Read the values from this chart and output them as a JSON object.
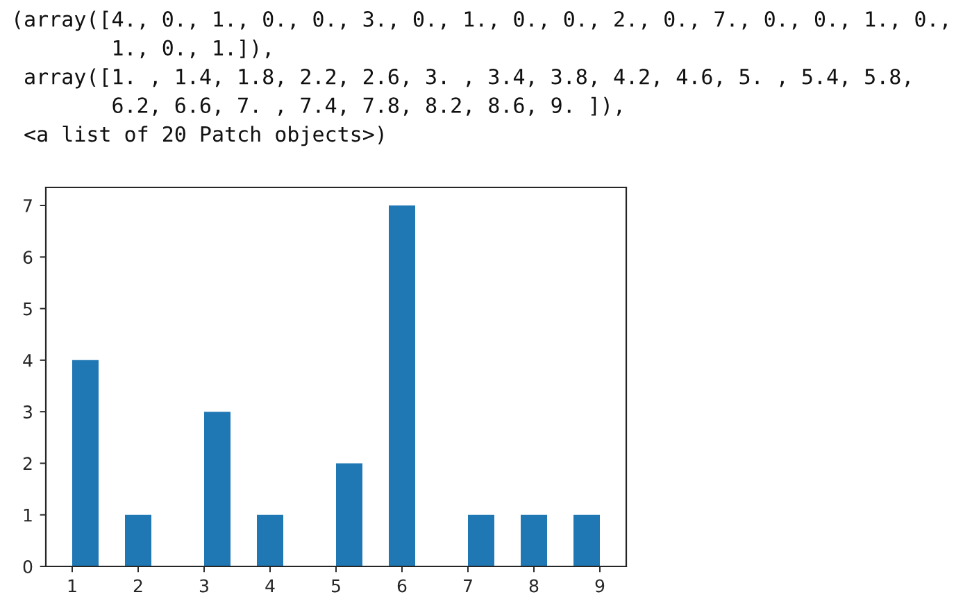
{
  "chart_data": {
    "type": "histogram",
    "bins": [
      1,
      1.4,
      1.8,
      2.2,
      2.6,
      3,
      3.4,
      3.8,
      4.2,
      4.6,
      5,
      5.4,
      5.8,
      6.2,
      6.6,
      7,
      7.4,
      7.8,
      8.2,
      8.6,
      9
    ],
    "values": [
      4,
      0,
      1,
      0,
      0,
      3,
      0,
      1,
      0,
      0,
      2,
      0,
      7,
      0,
      0,
      1,
      0,
      1,
      0,
      1
    ],
    "color": "#1f77b4",
    "xlim": [
      0.6,
      9.4
    ],
    "ylim": [
      0,
      7.35
    ],
    "xticks": [
      1,
      2,
      3,
      4,
      5,
      6,
      7,
      8,
      9
    ],
    "yticks": [
      0,
      1,
      2,
      3,
      4,
      5,
      6,
      7
    ],
    "annotations": [
      "(array([4., 0., 1., 0., 0., 3., 0., 1., 0., 0., 2., 0., 7., 0., 0., 1., 0.,",
      "        1., 0., 1.]),",
      " array([1. , 1.4, 1.8, 2.2, 2.6, 3. , 3.4, 3.8, 4.2, 4.6, 5. , 5.4, 5.8,",
      "        6.2, 6.6, 7. , 7.4, 7.8, 8.2, 8.6, 9. ]),",
      " <a list of 20 Patch objects>)"
    ]
  }
}
